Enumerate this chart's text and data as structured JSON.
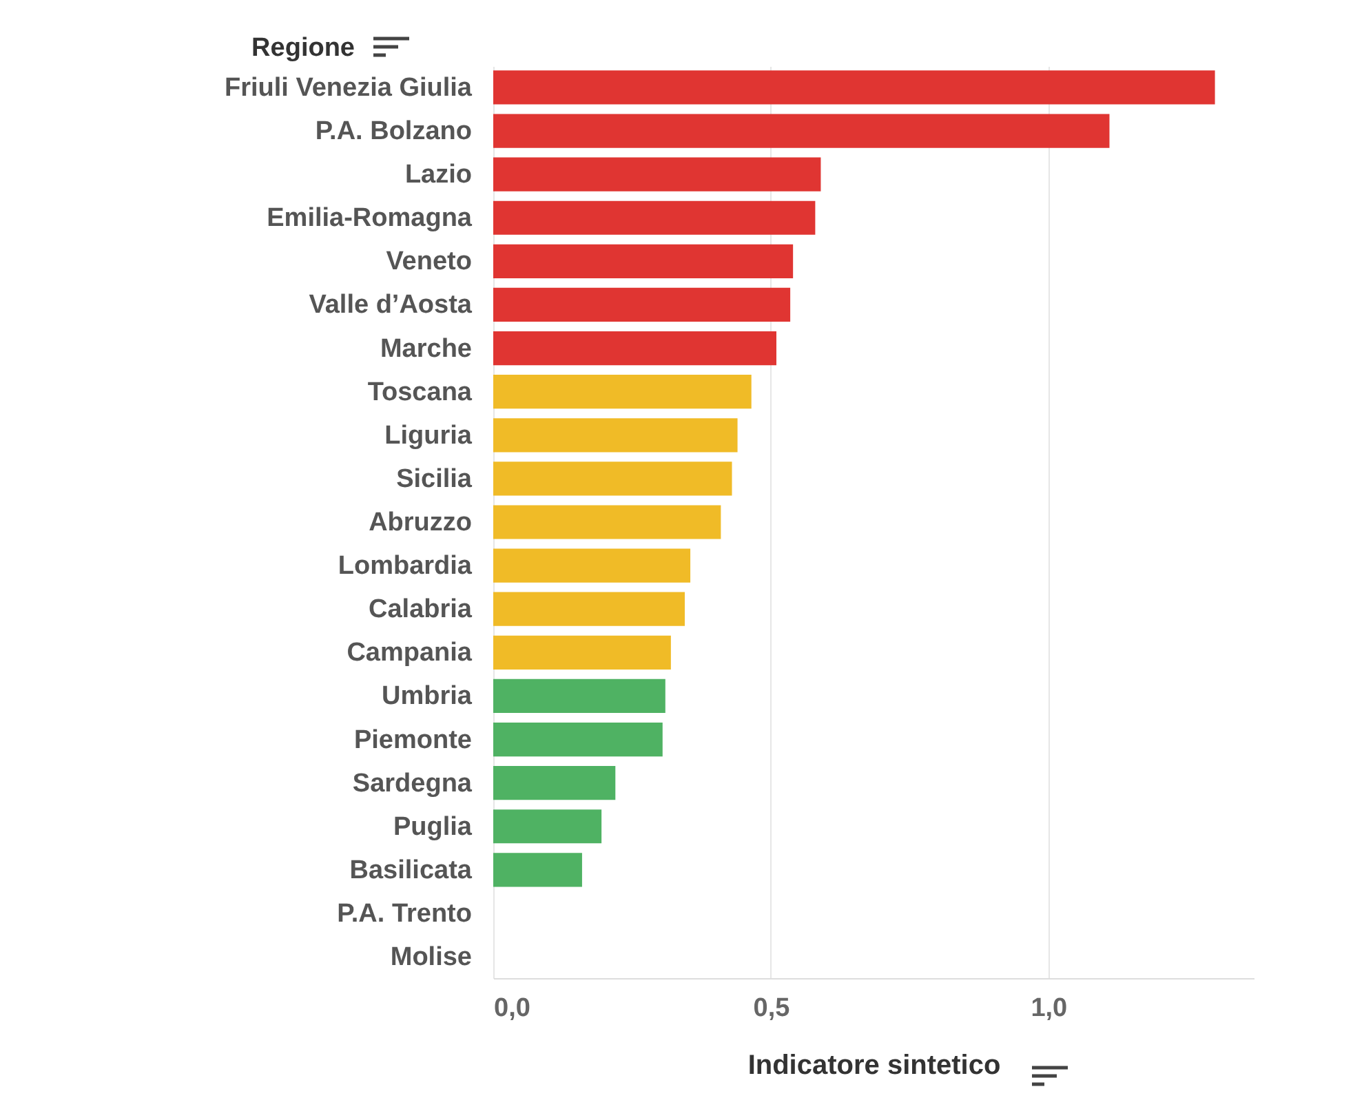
{
  "chart_data": {
    "type": "bar",
    "orientation": "horizontal",
    "ylabel": "Regione",
    "xlabel": "Indicatore sintetico",
    "categories": [
      "Friuli Venezia Giulia",
      "P.A. Bolzano",
      "Lazio",
      "Emilia-Romagna",
      "Veneto",
      "Valle d’Aosta",
      "Marche",
      "Toscana",
      "Liguria",
      "Sicilia",
      "Abruzzo",
      "Lombardia",
      "Calabria",
      "Campania",
      "Umbria",
      "Piemonte",
      "Sardegna",
      "Puglia",
      "Basilicata",
      "P.A. Trento",
      "Molise"
    ],
    "values": [
      1.3,
      1.11,
      0.59,
      0.58,
      0.54,
      0.535,
      0.51,
      0.465,
      0.44,
      0.43,
      0.41,
      0.355,
      0.345,
      0.32,
      0.31,
      0.305,
      0.22,
      0.195,
      0.16,
      null,
      null
    ],
    "colors": [
      "#e03532",
      "#e03532",
      "#e03532",
      "#e03532",
      "#e03532",
      "#e03532",
      "#e03532",
      "#f0bb27",
      "#f0bb27",
      "#f0bb27",
      "#f0bb27",
      "#f0bb27",
      "#f0bb27",
      "#f0bb27",
      "#4fb263",
      "#4fb263",
      "#4fb263",
      "#4fb263",
      "#4fb263",
      "#4fb263",
      "#4fb263"
    ],
    "xlim": [
      0,
      1.37
    ],
    "xticks": [
      {
        "value": 0,
        "label": "0,0"
      },
      {
        "value": 0.5,
        "label": "0,5"
      },
      {
        "value": 1,
        "label": "1,0"
      }
    ],
    "grid": "x"
  }
}
